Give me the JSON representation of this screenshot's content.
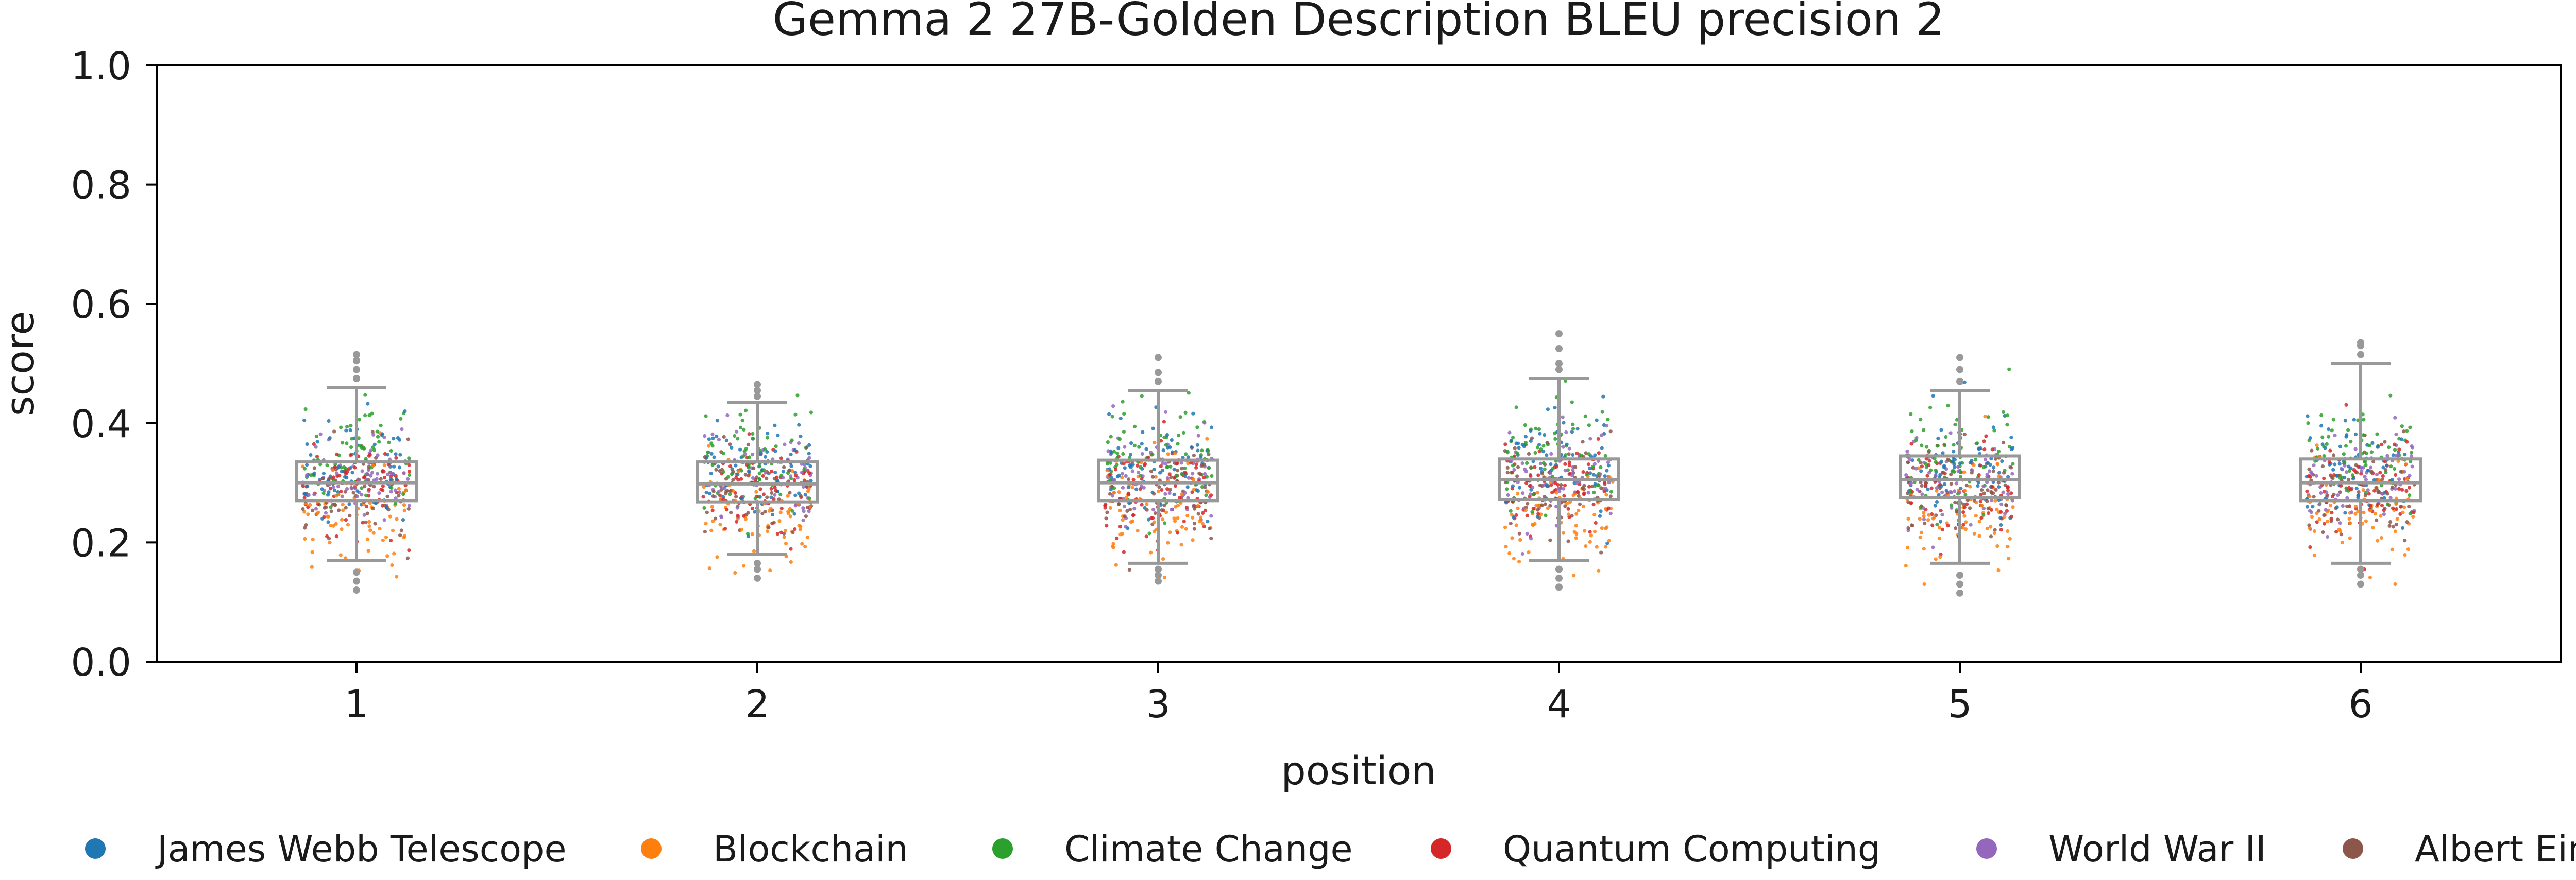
{
  "chart_data": {
    "type": "box-strip",
    "title": "Gemma 2 27B-Golden Description BLEU precision 2",
    "xlabel": "position",
    "ylabel": "score",
    "ylim": [
      0.0,
      1.0
    ],
    "yticks": [
      0.0,
      0.2,
      0.4,
      0.6,
      0.8,
      1.0
    ],
    "ytick_labels": [
      "0.0",
      "0.2",
      "0.4",
      "0.6",
      "0.8",
      "1.0"
    ],
    "categories": [
      "1",
      "2",
      "3",
      "4",
      "5",
      "6"
    ],
    "grid": false,
    "legend_position": "bottom",
    "series": [
      {
        "name": "James Webb Telescope",
        "color": "#1f77b4",
        "center": 0.32,
        "spread": 0.045
      },
      {
        "name": "Blockchain",
        "color": "#ff7f0e",
        "center": 0.25,
        "spread": 0.045
      },
      {
        "name": "Climate Change",
        "color": "#2ca02c",
        "center": 0.34,
        "spread": 0.045
      },
      {
        "name": "Quantum Computing",
        "color": "#d62728",
        "center": 0.29,
        "spread": 0.04
      },
      {
        "name": "World War II",
        "color": "#9467bd",
        "center": 0.31,
        "spread": 0.04
      },
      {
        "name": "Albert Einstein",
        "color": "#8c564b",
        "center": 0.29,
        "spread": 0.04
      }
    ],
    "boxes": [
      {
        "position": "1",
        "whisker_low": 0.17,
        "q1": 0.27,
        "median": 0.3,
        "q3": 0.335,
        "whisker_high": 0.46,
        "outliers": [
          0.12,
          0.135,
          0.15,
          0.475,
          0.49,
          0.505,
          0.515
        ]
      },
      {
        "position": "2",
        "whisker_low": 0.18,
        "q1": 0.268,
        "median": 0.298,
        "q3": 0.335,
        "whisker_high": 0.435,
        "outliers": [
          0.14,
          0.155,
          0.165,
          0.445,
          0.455,
          0.465
        ]
      },
      {
        "position": "3",
        "whisker_low": 0.165,
        "q1": 0.27,
        "median": 0.3,
        "q3": 0.338,
        "whisker_high": 0.455,
        "outliers": [
          0.135,
          0.145,
          0.155,
          0.47,
          0.485,
          0.51
        ]
      },
      {
        "position": "4",
        "whisker_low": 0.17,
        "q1": 0.272,
        "median": 0.305,
        "q3": 0.34,
        "whisker_high": 0.475,
        "outliers": [
          0.125,
          0.14,
          0.155,
          0.49,
          0.5,
          0.525,
          0.55
        ]
      },
      {
        "position": "5",
        "whisker_low": 0.165,
        "q1": 0.275,
        "median": 0.305,
        "q3": 0.345,
        "whisker_high": 0.455,
        "outliers": [
          0.115,
          0.13,
          0.145,
          0.47,
          0.49,
          0.51
        ]
      },
      {
        "position": "6",
        "whisker_low": 0.165,
        "q1": 0.27,
        "median": 0.3,
        "q3": 0.34,
        "whisker_high": 0.5,
        "outliers": [
          0.13,
          0.145,
          0.155,
          0.515,
          0.53,
          0.535
        ]
      }
    ],
    "points_per_series_per_position": 70,
    "box_color": "#999999"
  }
}
